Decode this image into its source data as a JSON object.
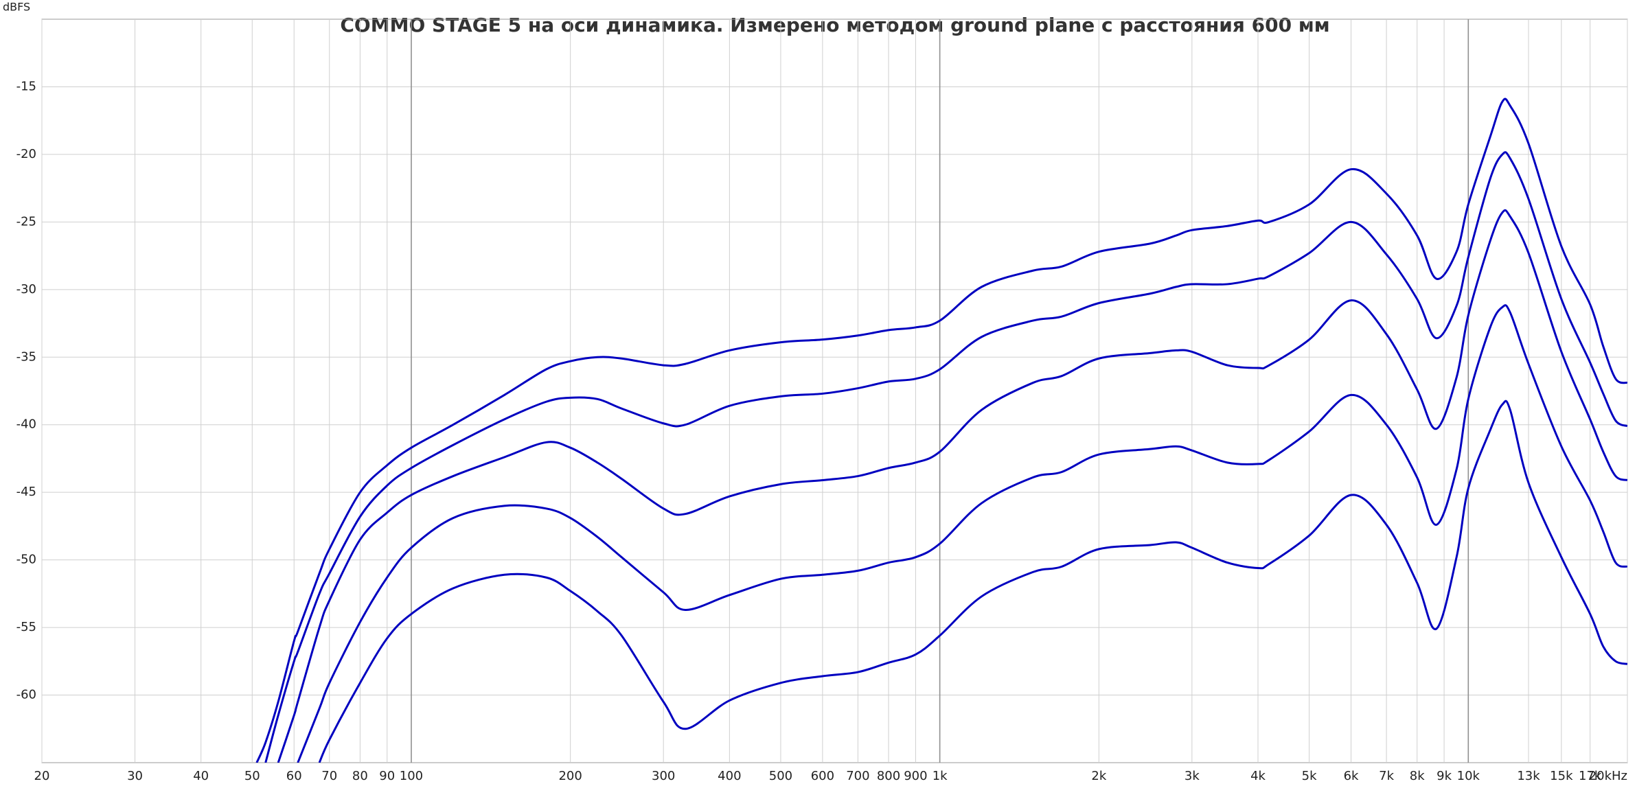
{
  "chart_data": {
    "type": "line",
    "title": "COMMO STAGE 5 на оси динамика. Измерено методом ground plane с расстояния 600 мм",
    "y_label": "dBFS",
    "xscale": "log",
    "grid": true,
    "xlim": [
      20,
      20000
    ],
    "ylim": [
      -65,
      -10
    ],
    "xticks": [
      20,
      30,
      40,
      50,
      60,
      70,
      80,
      90,
      100,
      200,
      300,
      400,
      500,
      600,
      700,
      800,
      900,
      {
        "value": 1000,
        "label": "1k"
      },
      {
        "value": 2000,
        "label": "2k"
      },
      {
        "value": 3000,
        "label": "3k"
      },
      {
        "value": 4000,
        "label": "4k"
      },
      {
        "value": 5000,
        "label": "5k"
      },
      {
        "value": 6000,
        "label": "6k"
      },
      {
        "value": 7000,
        "label": "7k"
      },
      {
        "value": 8000,
        "label": "8k"
      },
      {
        "value": 9000,
        "label": "9k"
      },
      {
        "value": 10000,
        "label": "10k"
      },
      {
        "value": 13000,
        "label": "13k"
      },
      {
        "value": 15000,
        "label": "15k"
      },
      {
        "value": 17000,
        "label": "17k"
      },
      {
        "value": 20000,
        "label": "20kHz"
      }
    ],
    "yticks": [
      -60,
      -55,
      -50,
      -45,
      -40,
      -35,
      -30,
      -25,
      -20,
      -15
    ],
    "x": [
      51,
      53,
      56,
      60,
      61,
      67,
      70,
      80,
      90,
      100,
      120,
      150,
      180,
      200,
      225,
      250,
      300,
      330,
      400,
      500,
      600,
      700,
      800,
      900,
      1000,
      1200,
      1500,
      1700,
      2000,
      2500,
      2800,
      3000,
      3500,
      4000,
      4200,
      5000,
      6000,
      7000,
      8000,
      8700,
      9500,
      10000,
      11000,
      11600,
      12000,
      13000,
      15000,
      17000,
      18000,
      19000,
      20000
    ],
    "series": [
      {
        "color": "#0000c0",
        "values": [
          -65,
          -63.5,
          -60.5,
          -56,
          -55.3,
          -51,
          -49.2,
          -45,
          -43,
          -41.7,
          -40,
          -37.8,
          -35.9,
          -35.3,
          -35,
          -35.1,
          -35.6,
          -35.5,
          -34.5,
          -33.9,
          -33.7,
          -33.4,
          -33,
          -32.8,
          -32.3,
          -29.8,
          -28.6,
          -28.3,
          -27.2,
          -26.6,
          -26,
          -25.6,
          -25.3,
          -24.9,
          -25,
          -23.7,
          -21.1,
          -22.9,
          -26,
          -29.2,
          -27.2,
          -23.7,
          -18.7,
          -16.1,
          -16.4,
          -19.2,
          -26.8,
          -31.1,
          -34.2,
          -36.6,
          -36.9
        ]
      },
      {
        "color": "#0000c0",
        "values": [
          null,
          -65,
          -61.5,
          -57.5,
          -56.8,
          -52.5,
          -51,
          -46.8,
          -44.5,
          -43.2,
          -41.5,
          -39.6,
          -38.3,
          -38,
          -38.1,
          -38.8,
          -39.9,
          -40,
          -38.6,
          -37.9,
          -37.7,
          -37.3,
          -36.8,
          -36.6,
          -35.9,
          -33.5,
          -32.3,
          -32,
          -31,
          -30.3,
          -29.8,
          -29.6,
          -29.6,
          -29.2,
          -29,
          -27.3,
          -25,
          -27.4,
          -30.7,
          -33.6,
          -31.2,
          -27.6,
          -21.8,
          -20,
          -20.3,
          -23.3,
          -30.7,
          -35.4,
          -37.7,
          -39.7,
          -40.1
        ]
      },
      {
        "color": "#0000c0",
        "values": [
          null,
          null,
          -65,
          -61.5,
          -60.5,
          -55,
          -53,
          -48.5,
          -46.5,
          -45.2,
          -43.8,
          -42.4,
          -41.3,
          -41.7,
          -42.8,
          -44,
          -46.2,
          -46.6,
          -45.3,
          -44.4,
          -44.1,
          -43.8,
          -43.2,
          -42.8,
          -42,
          -38.9,
          -36.9,
          -36.4,
          -35.1,
          -34.7,
          -34.5,
          -34.6,
          -35.6,
          -35.8,
          -35.6,
          -33.7,
          -30.8,
          -33.3,
          -37.4,
          -40.3,
          -36.5,
          -31.9,
          -26.4,
          -24.3,
          -24.6,
          -27.3,
          -34.6,
          -39.6,
          -42,
          -43.8,
          -44.1
        ]
      },
      {
        "color": "#0000c0",
        "values": [
          null,
          null,
          null,
          null,
          -65,
          -61,
          -59.1,
          -54.6,
          -51.3,
          -49.1,
          -46.9,
          -46,
          -46.2,
          -46.9,
          -48.3,
          -49.8,
          -52.4,
          -53.7,
          -52.6,
          -51.4,
          -51.1,
          -50.8,
          -50.2,
          -49.8,
          -48.8,
          -45.8,
          -43.9,
          -43.5,
          -42.2,
          -41.8,
          -41.6,
          -41.9,
          -42.8,
          -42.9,
          -42.6,
          -40.5,
          -37.8,
          -40,
          -43.9,
          -47.4,
          -43.3,
          -38.1,
          -32.8,
          -31.3,
          -31.7,
          -35.5,
          -41.6,
          -45.6,
          -47.9,
          -50.2,
          -50.5
        ]
      },
      {
        "color": "#0000c0",
        "values": [
          null,
          null,
          null,
          null,
          null,
          -65,
          -63.3,
          -59.1,
          -55.8,
          -54,
          -52.1,
          -51.1,
          -51.3,
          -52.3,
          -53.8,
          -55.6,
          -60.5,
          -62.5,
          -60.4,
          -59.1,
          -58.6,
          -58.3,
          -57.6,
          -57,
          -55.6,
          -52.7,
          -50.9,
          -50.5,
          -49.2,
          -48.9,
          -48.7,
          -49.1,
          -50.2,
          -50.6,
          -50.3,
          -48.2,
          -45.2,
          -47.4,
          -51.7,
          -55.1,
          -49.8,
          -44.7,
          -40.4,
          -38.5,
          -38.9,
          -44.3,
          -49.8,
          -54,
          -56.4,
          -57.5,
          -57.7
        ]
      }
    ]
  }
}
